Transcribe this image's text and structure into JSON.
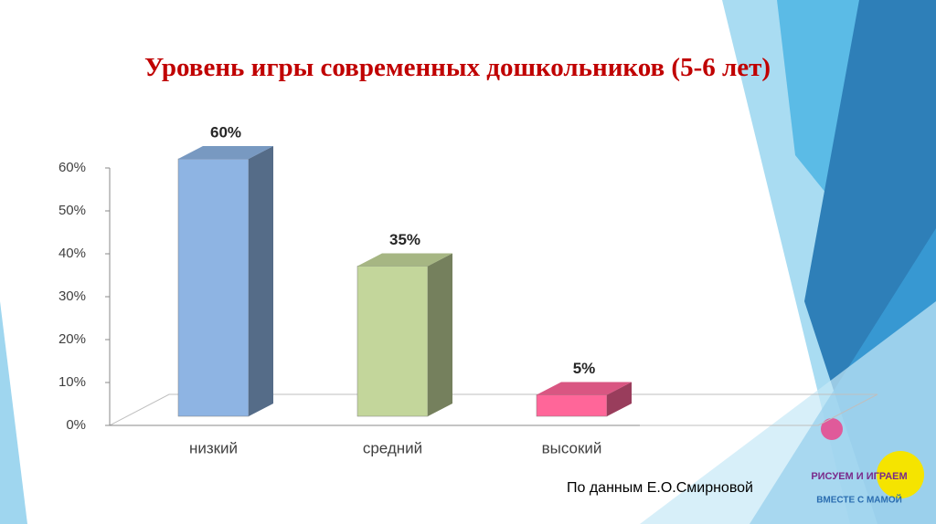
{
  "chart_data": {
    "type": "bar3d",
    "title": "Уровень игры современных дошкольников (5-6 лет)",
    "categories": [
      "низкий",
      "средний",
      "высокий"
    ],
    "values": [
      60,
      35,
      5
    ],
    "value_labels": [
      "60%",
      "35%",
      "5%"
    ],
    "colors": [
      "#8eb4e3",
      "#c3d69b",
      "#ff6699"
    ],
    "ylim": [
      0,
      60
    ],
    "yticks": [
      {
        "value": 0,
        "label": "0%"
      },
      {
        "value": 10,
        "label": "10%"
      },
      {
        "value": 20,
        "label": "20%"
      },
      {
        "value": 30,
        "label": "30%"
      },
      {
        "value": 40,
        "label": "40%"
      },
      {
        "value": 50,
        "label": "50%"
      },
      {
        "value": 60,
        "label": "60%"
      }
    ]
  },
  "source": "По данным Е.О.Смирновой",
  "logo": {
    "line1": "РИСУЕМ И ИГРАЕМ",
    "line2": "ВМЕСТЕ С МАМОЙ"
  }
}
